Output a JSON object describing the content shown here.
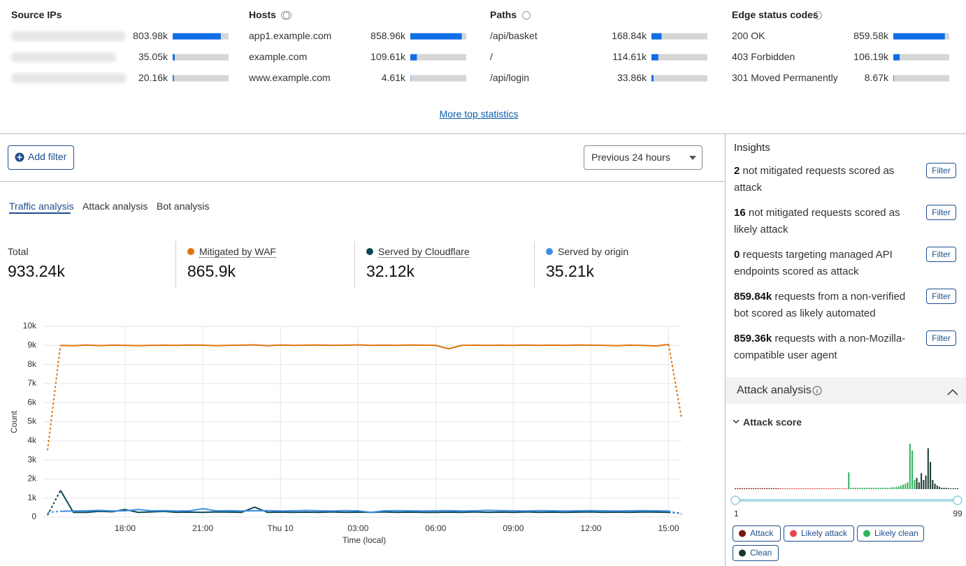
{
  "top_statistics": [
    {
      "title": "Source IPs",
      "rows": [
        {
          "value": 803980,
          "value_label": "803.98k"
        },
        {
          "value": 35050,
          "value_label": "35.05k"
        },
        {
          "value": 20160,
          "value_label": "20.16k"
        }
      ]
    },
    {
      "title": "Hosts",
      "rows": [
        {
          "label": "app1.example.com",
          "value": 858960,
          "value_label": "858.96k"
        },
        {
          "label": "example.com",
          "value": 109610,
          "value_label": "109.61k"
        },
        {
          "label": "www.example.com",
          "value": 4610,
          "value_label": "4.61k"
        }
      ]
    },
    {
      "title": "Paths",
      "rows": [
        {
          "label": "/api/basket",
          "value": 168840,
          "value_label": "168.84k"
        },
        {
          "label": "/",
          "value": 114610,
          "value_label": "114.61k"
        },
        {
          "label": "/api/login",
          "value": 33860,
          "value_label": "33.86k"
        }
      ]
    },
    {
      "title": "Edge status codes",
      "rows": [
        {
          "label": "200 OK",
          "value": 859580,
          "value_label": "859.58k"
        },
        {
          "label": "403 Forbidden",
          "value": 106190,
          "value_label": "106.19k"
        },
        {
          "label": "301 Moved Permanently",
          "value": 8670,
          "value_label": "8.67k"
        }
      ]
    }
  ],
  "more_link": "More top statistics",
  "filter_button": "Add filter",
  "time_range": "Previous 24 hours",
  "tabs": [
    "Traffic analysis",
    "Attack analysis",
    "Bot analysis"
  ],
  "summary": [
    {
      "label": "Total",
      "value": 933240,
      "value_label": "933.24k"
    },
    {
      "value_label": "865.9k"
    },
    {
      "value_label": "32.12k"
    },
    {
      "value_label": "35.21k"
    }
  ],
  "insights": {
    "title": "Insights",
    "items": [
      {
        "value_label": "2",
        "text": "not mitigated requests scored as attack",
        "button": "Filter"
      },
      {
        "value_label": "16",
        "text": "not mitigated requests scored as likely attack",
        "button": "Filter"
      },
      {
        "value_label": "0",
        "text": "requests targeting managed API endpoints scored as attack",
        "button": "Filter"
      },
      {
        "value_label": "859.84k",
        "text": "requests from a non-verified bot scored as likely automated",
        "button": "Filter"
      },
      {
        "value_label": "859.36k",
        "text": "requests with a non-Mozilla-compatible user agent",
        "button": "Filter"
      }
    ]
  },
  "attack_panel": {
    "title": "Attack analysis",
    "subtitle": "Attack score"
  },
  "chart_data": [
    {
      "type": "line",
      "x_label": "Time (local)",
      "y_label": "Count",
      "categories": [
        null,
        null,
        null,
        null,
        null,
        null,
        "18:00",
        null,
        null,
        null,
        null,
        null,
        "21:00",
        null,
        null,
        null,
        null,
        null,
        "Thu 10",
        null,
        null,
        null,
        null,
        null,
        "03:00",
        null,
        null,
        null,
        null,
        null,
        "06:00",
        null,
        null,
        null,
        null,
        null,
        "09:00",
        null,
        null,
        null,
        null,
        null,
        "12:00",
        null,
        null,
        null,
        null,
        null,
        "15:00",
        null
      ],
      "ylim": [
        0,
        10000
      ],
      "yticks": [
        0,
        {
          "value": 1000,
          "label": "1k"
        },
        {
          "value": 2000,
          "label": "2k"
        },
        {
          "value": 3000,
          "label": "3k"
        },
        {
          "value": 4000,
          "label": "4k"
        },
        {
          "value": 5000,
          "label": "5k"
        },
        {
          "value": 6000,
          "label": "6k"
        },
        {
          "value": 7000,
          "label": "7k"
        },
        {
          "value": 8000,
          "label": "8k"
        },
        {
          "value": 9000,
          "label": "9k"
        },
        {
          "value": 10000,
          "label": "10k"
        }
      ],
      "grid": true,
      "series": [
        {
          "name": "Mitigated by WAF",
          "color": "#e0730f",
          "values": [
            3500,
            9000,
            8980,
            9020,
            8990,
            9010,
            9000,
            8990,
            9000,
            9010,
            9000,
            9020,
            9010,
            8990,
            9000,
            9010,
            9030,
            8980,
            9020,
            9000,
            9010,
            9020,
            9000,
            9010,
            9030,
            9000,
            9010,
            9000,
            9020,
            9010,
            9000,
            8820,
            9000,
            9010,
            9000,
            9010,
            9000,
            9020,
            9000,
            9010,
            9000,
            9020,
            9010,
            9000,
            8990,
            9010,
            9000,
            8970,
            9050,
            5200
          ]
        },
        {
          "name": "Served by Cloudflare",
          "color": "#0d4654",
          "values": [
            100,
            1400,
            250,
            250,
            300,
            280,
            400,
            250,
            270,
            300,
            250,
            260,
            250,
            270,
            260,
            250,
            520,
            250,
            260,
            250,
            260,
            250,
            270,
            250,
            260,
            250,
            270,
            250,
            260,
            250,
            250,
            260,
            250,
            270,
            250,
            260,
            250,
            270,
            250,
            260,
            250,
            260,
            270,
            250,
            260,
            250,
            270,
            260,
            250,
            200
          ]
        },
        {
          "name": "Served by origin",
          "color": "#3d8fe3",
          "values": [
            250,
            300,
            320,
            330,
            350,
            320,
            330,
            400,
            330,
            340,
            320,
            330,
            440,
            330,
            340,
            320,
            330,
            340,
            320,
            330,
            350,
            330,
            320,
            340,
            330,
            250,
            330,
            340,
            330,
            320,
            330,
            340,
            320,
            330,
            350,
            340,
            330,
            320,
            340,
            330,
            320,
            330,
            340,
            330,
            320,
            330,
            340,
            330,
            320,
            150
          ]
        }
      ]
    },
    {
      "type": "bar",
      "xlim": [
        1,
        99
      ],
      "xticks": [
        1,
        99
      ],
      "ylim": [
        0,
        100
      ],
      "series": [
        {
          "name": "Attack",
          "color": "#7a1414",
          "x": [
            1,
            2,
            3,
            4,
            5,
            6,
            7,
            8,
            9,
            10,
            11,
            12,
            13,
            14,
            15,
            16,
            17,
            18,
            19,
            20
          ],
          "values": [
            2,
            2,
            2,
            2,
            2,
            2,
            2,
            2,
            2,
            2,
            2,
            2,
            2,
            2,
            2,
            2,
            2,
            2,
            2,
            2
          ]
        },
        {
          "name": "Likely attack",
          "color": "#e5484d",
          "x": [
            21,
            22,
            23,
            24,
            25,
            26,
            27,
            28,
            29,
            30,
            31,
            32,
            33,
            34,
            35,
            36,
            37,
            38,
            39,
            40,
            41,
            42,
            43,
            44,
            45,
            46,
            47,
            48,
            49,
            50
          ],
          "values": [
            2,
            2,
            2,
            2,
            2,
            2,
            2,
            2,
            2,
            2,
            2,
            2,
            2,
            2,
            2,
            2,
            2,
            2,
            2,
            2,
            2,
            2,
            2,
            2,
            2,
            2,
            2,
            2,
            2,
            2
          ]
        },
        {
          "name": "Likely clean",
          "color": "#2fb35a",
          "x": [
            51,
            52,
            53,
            54,
            55,
            56,
            57,
            58,
            59,
            60,
            61,
            62,
            63,
            64,
            65,
            66,
            67,
            68,
            69,
            70,
            71,
            72,
            73,
            74,
            75,
            76,
            77,
            78,
            79,
            80
          ],
          "values": [
            37,
            3,
            3,
            3,
            3,
            3,
            3,
            3,
            3,
            3,
            3,
            3,
            3,
            3,
            3,
            3,
            3,
            3,
            3,
            4,
            4,
            5,
            6,
            8,
            10,
            12,
            15,
            100,
            85,
            20
          ]
        },
        {
          "name": "Clean",
          "color": "#17382a",
          "x": [
            81,
            82,
            83,
            84,
            85,
            86,
            87,
            88,
            89,
            90,
            91,
            92,
            93,
            94,
            95,
            96,
            97,
            98,
            99
          ],
          "values": [
            25,
            15,
            35,
            20,
            30,
            90,
            60,
            20,
            12,
            8,
            5,
            3,
            3,
            3,
            2,
            2,
            2,
            2,
            2
          ]
        }
      ]
    }
  ]
}
